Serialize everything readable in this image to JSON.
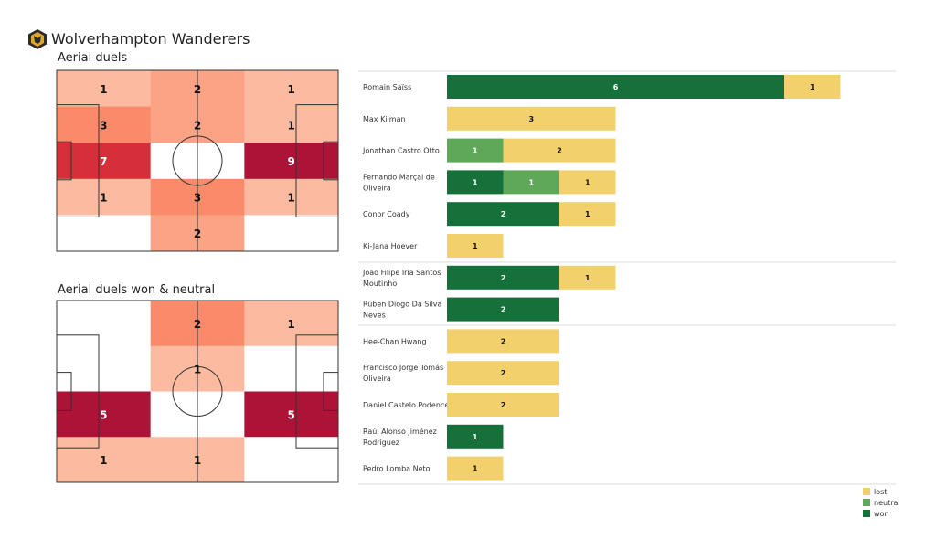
{
  "header": {
    "title": "Wolverhampton Wanderers"
  },
  "colors": {
    "lost": "#f2d06b",
    "neutral": "#5fa85a",
    "won": "#16703a"
  },
  "chart_data": [
    {
      "type": "heatmap",
      "title": "Aerial duels",
      "grid": [
        [
          1,
          2,
          1
        ],
        [
          3,
          2,
          1
        ],
        [
          7,
          0,
          9
        ],
        [
          1,
          3,
          1
        ],
        [
          0,
          2,
          0
        ]
      ]
    },
    {
      "type": "heatmap",
      "title": "Aerial duels won & neutral",
      "grid": [
        [
          0,
          2,
          1
        ],
        [
          0,
          1,
          0
        ],
        [
          5,
          0,
          5
        ],
        [
          1,
          1,
          0
        ]
      ]
    },
    {
      "type": "bar",
      "orientation": "horizontal",
      "stacked": true,
      "legend": "bottom-right",
      "series_names": [
        "lost",
        "neutral",
        "won"
      ],
      "players": [
        {
          "name": "Romain Saïss",
          "won": 6,
          "neutral": 0,
          "lost": 1
        },
        {
          "name": "Max Kilman",
          "won": 0,
          "neutral": 0,
          "lost": 3
        },
        {
          "name": "Jonathan Castro Otto",
          "won": 0,
          "neutral": 1,
          "lost": 2
        },
        {
          "name": "Fernando Marçal de Oliveira",
          "won": 1,
          "neutral": 1,
          "lost": 1
        },
        {
          "name": "Conor  Coady",
          "won": 2,
          "neutral": 0,
          "lost": 1
        },
        {
          "name": "Ki-Jana Hoever",
          "won": 0,
          "neutral": 0,
          "lost": 1
        },
        {
          "name": "João Filipe Iria Santos Moutinho",
          "won": 2,
          "neutral": 0,
          "lost": 1
        },
        {
          "name": "Rúben Diogo Da Silva Neves",
          "won": 2,
          "neutral": 0,
          "lost": 0
        },
        {
          "name": "Hee-Chan Hwang",
          "won": 0,
          "neutral": 0,
          "lost": 2
        },
        {
          "name": "Francisco Jorge Tomás Oliveira",
          "won": 0,
          "neutral": 0,
          "lost": 2
        },
        {
          "name": "Daniel Castelo Podence",
          "won": 0,
          "neutral": 0,
          "lost": 2
        },
        {
          "name": "Raúl Alonso Jiménez Rodríguez",
          "won": 1,
          "neutral": 0,
          "lost": 0
        },
        {
          "name": "Pedro Lomba Neto",
          "won": 0,
          "neutral": 0,
          "lost": 1
        }
      ]
    }
  ]
}
